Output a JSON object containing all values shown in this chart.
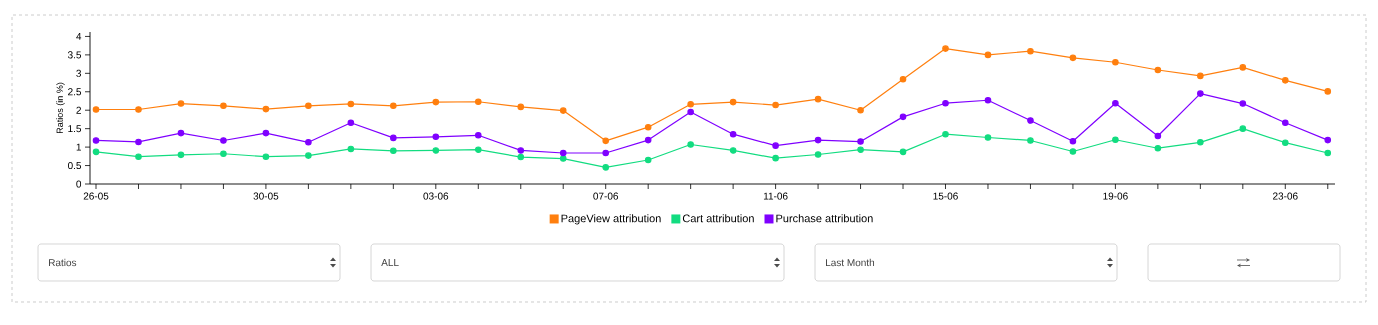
{
  "chart_data": {
    "type": "line",
    "ylabel": "Ratios (in %)",
    "categories": [
      "26-05",
      null,
      null,
      null,
      "30-05",
      null,
      null,
      null,
      "03-06",
      null,
      null,
      null,
      "07-06",
      null,
      null,
      null,
      "11-06",
      null,
      null,
      null,
      "15-06",
      null,
      null,
      null,
      "19-06",
      null,
      null,
      null,
      "23-06",
      null
    ],
    "series": [
      {
        "name": "PageView attribution",
        "color": "#ff7f0e",
        "values": [
          2.02,
          2.02,
          2.18,
          2.12,
          2.03,
          2.12,
          2.17,
          2.12,
          2.22,
          2.23,
          2.09,
          1.99,
          1.17,
          1.54,
          2.16,
          2.22,
          2.14,
          2.3,
          2.0,
          2.84,
          3.67,
          3.5,
          3.6,
          3.42,
          3.3,
          3.09,
          2.93,
          3.16,
          2.81,
          2.51
        ]
      },
      {
        "name": "Cart attribution",
        "color": "#12dc80",
        "values": [
          0.87,
          0.74,
          0.79,
          0.82,
          0.74,
          0.77,
          0.95,
          0.9,
          0.91,
          0.93,
          0.73,
          0.69,
          0.45,
          0.65,
          1.07,
          0.91,
          0.7,
          0.8,
          0.93,
          0.87,
          1.35,
          1.26,
          1.18,
          0.88,
          1.2,
          0.97,
          1.13,
          1.5,
          1.12,
          0.84
        ]
      },
      {
        "name": "Purchase attribution",
        "color": "#7f00ff",
        "values": [
          1.18,
          1.14,
          1.38,
          1.18,
          1.38,
          1.13,
          1.66,
          1.25,
          1.28,
          1.32,
          0.91,
          0.84,
          0.84,
          1.19,
          1.95,
          1.35,
          1.04,
          1.19,
          1.15,
          1.82,
          2.19,
          2.27,
          1.72,
          1.16,
          2.19,
          1.3,
          2.45,
          2.18,
          1.66,
          1.19
        ]
      }
    ],
    "ylim": [
      0,
      4.12
    ],
    "yticks": [
      0,
      0.5,
      1,
      1.5,
      2,
      2.5,
      3,
      3.5,
      4
    ],
    "legend": "bottom",
    "marker": "circle",
    "line_style": "solid",
    "annotations": [
      "Ratios",
      "ALL",
      "Last Month"
    ]
  }
}
